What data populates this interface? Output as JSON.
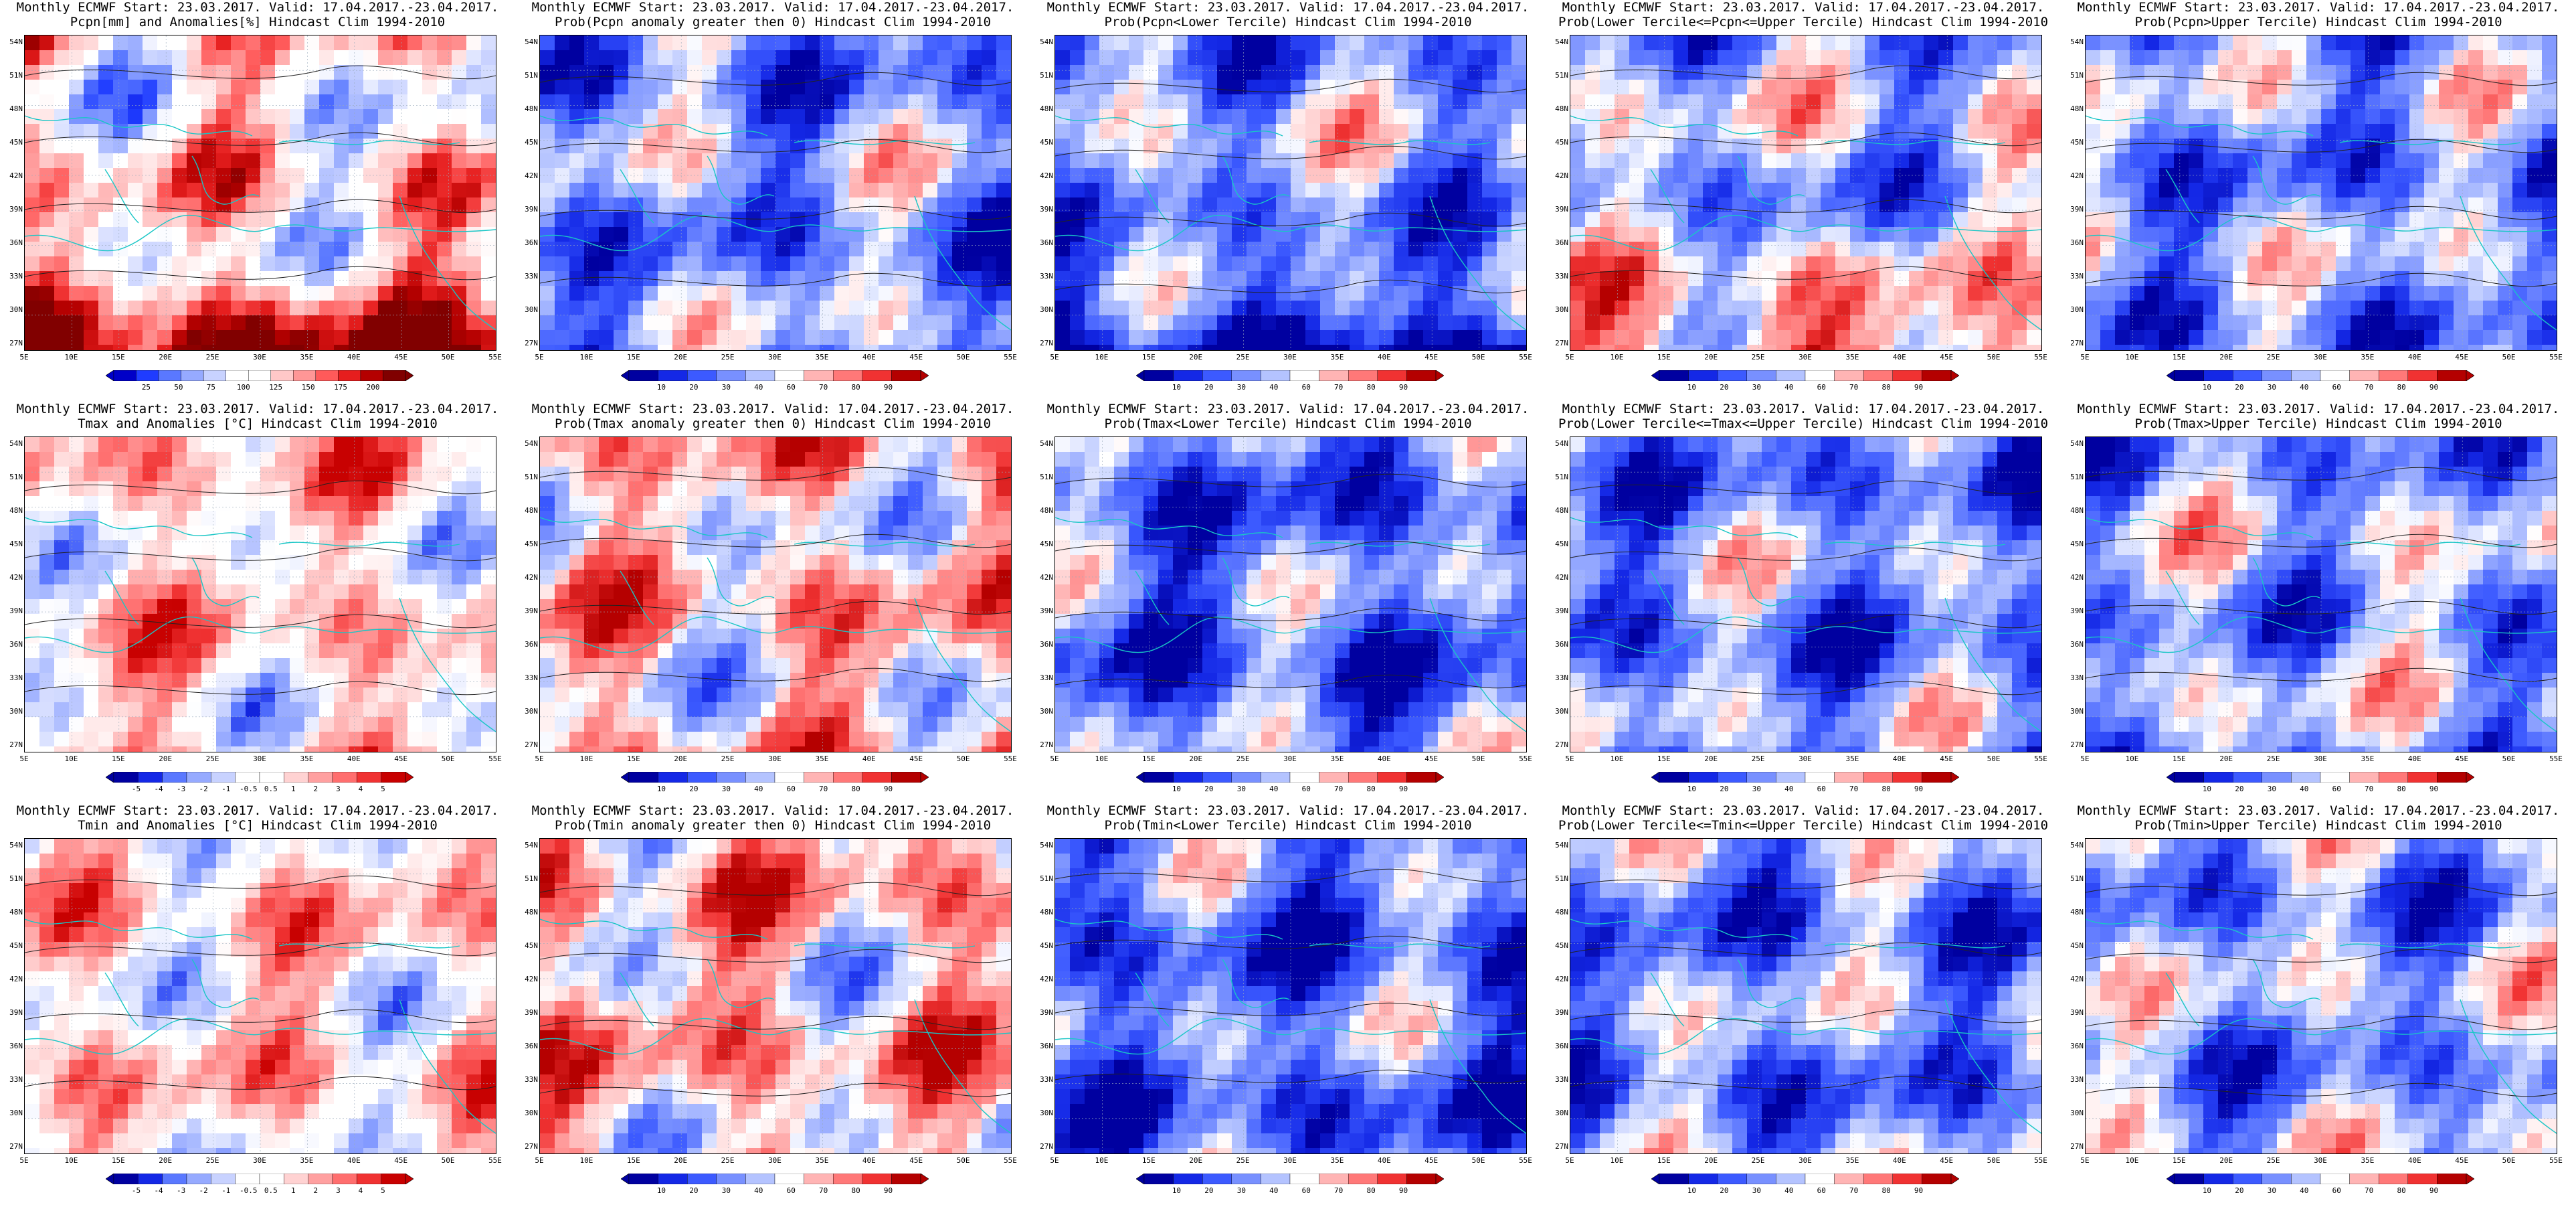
{
  "header_line": "Monthly ECMWF Start: 23.03.2017. Valid: 17.04.2017.-23.04.2017.",
  "lat_labels": [
    "54N",
    "51N",
    "48N",
    "45N",
    "42N",
    "39N",
    "36N",
    "33N",
    "30N",
    "27N"
  ],
  "lon_labels": [
    "5E",
    "10E",
    "15E",
    "20E",
    "25E",
    "30E",
    "35E",
    "40E",
    "45E",
    "50E",
    "55E"
  ],
  "colors": {
    "coastline": "#19c6c6",
    "contour": "#222222",
    "scale_anomaly_pcpn": [
      "#0000c8",
      "#1f3cff",
      "#5a78ff",
      "#96aaff",
      "#c8d2ff",
      "#ffffff",
      "#ffffff",
      "#ffc8c8",
      "#ff9696",
      "#ff5a5a",
      "#e61e1e",
      "#b40000",
      "#800000"
    ],
    "scale_prob": [
      "#0000a0",
      "#1428e6",
      "#3c5aff",
      "#7890ff",
      "#b4c3ff",
      "#ffffff",
      "#ffb4b4",
      "#ff7878",
      "#f03232",
      "#b40000"
    ],
    "scale_anomaly_temp": [
      "#0000a0",
      "#1428e6",
      "#5a78ff",
      "#96aaff",
      "#c8d2ff",
      "#ffffff",
      "#ffffff",
      "#ffd2d2",
      "#ffa0a0",
      "#ff6e6e",
      "#f03232",
      "#c80000"
    ]
  },
  "panels": [
    {
      "title": "Pcpn[mm] and Anomalies[%] Hindcast Clim 1994-2010",
      "bias": 0.05,
      "colorbar": [
        "25",
        "50",
        "75",
        "100",
        "125",
        "150",
        "175",
        "200"
      ],
      "scale": "scale_anomaly_pcpn"
    },
    {
      "title": "Prob(Pcpn anomaly greater then 0) Hindcast Clim 1994-2010",
      "bias": -0.35,
      "colorbar": [
        "10",
        "20",
        "30",
        "40",
        "60",
        "70",
        "80",
        "90"
      ],
      "scale": "scale_prob"
    },
    {
      "title": "Prob(Pcpn<Lower Tercile) Hindcast Clim 1994-2010",
      "bias": -0.3,
      "colorbar": [
        "10",
        "20",
        "30",
        "40",
        "60",
        "70",
        "80",
        "90"
      ],
      "scale": "scale_prob"
    },
    {
      "title": "Prob(Lower Tercile<=Pcpn<=Upper Tercile) Hindcast Clim 1994-2010",
      "bias": -0.2,
      "colorbar": [
        "10",
        "20",
        "30",
        "40",
        "60",
        "70",
        "80",
        "90"
      ],
      "scale": "scale_prob"
    },
    {
      "title": "Prob(Pcpn>Upper Tercile) Hindcast Clim 1994-2010",
      "bias": -0.35,
      "colorbar": [
        "10",
        "20",
        "30",
        "40",
        "60",
        "70",
        "80",
        "90"
      ],
      "scale": "scale_prob"
    },
    {
      "title": "Tmax and Anomalies [°C] Hindcast Clim 1994-2010",
      "bias": 0.25,
      "colorbar": [
        "-5",
        "-4",
        "-3",
        "-2",
        "-1",
        "-0.5",
        "0.5",
        "1",
        "2",
        "3",
        "4",
        "5"
      ],
      "scale": "scale_anomaly_temp"
    },
    {
      "title": "Prob(Tmax anomaly greater then 0) Hindcast Clim 1994-2010",
      "bias": 0.3,
      "colorbar": [
        "10",
        "20",
        "30",
        "40",
        "60",
        "70",
        "80",
        "90"
      ],
      "scale": "scale_prob"
    },
    {
      "title": "Prob(Tmax<Lower Tercile) Hindcast Clim 1994-2010",
      "bias": -0.55,
      "colorbar": [
        "10",
        "20",
        "30",
        "40",
        "60",
        "70",
        "80",
        "90"
      ],
      "scale": "scale_prob"
    },
    {
      "title": "Prob(Lower Tercile<=Tmax<=Upper Tercile) Hindcast Clim 1994-2010",
      "bias": -0.4,
      "colorbar": [
        "10",
        "20",
        "30",
        "40",
        "60",
        "70",
        "80",
        "90"
      ],
      "scale": "scale_prob"
    },
    {
      "title": "Prob(Tmax>Upper Tercile) Hindcast Clim 1994-2010",
      "bias": -0.25,
      "colorbar": [
        "10",
        "20",
        "30",
        "40",
        "60",
        "70",
        "80",
        "90"
      ],
      "scale": "scale_prob"
    },
    {
      "title": "Tmin and Anomalies [°C] Hindcast Clim 1994-2010",
      "bias": 0.2,
      "colorbar": [
        "-5",
        "-4",
        "-3",
        "-2",
        "-1",
        "-0.5",
        "0.5",
        "1",
        "2",
        "3",
        "4",
        "5"
      ],
      "scale": "scale_anomaly_temp"
    },
    {
      "title": "Prob(Tmin anomaly greater then 0) Hindcast Clim 1994-2010",
      "bias": 0.35,
      "colorbar": [
        "10",
        "20",
        "30",
        "40",
        "60",
        "70",
        "80",
        "90"
      ],
      "scale": "scale_prob"
    },
    {
      "title": "Prob(Tmin<Lower Tercile) Hindcast Clim 1994-2010",
      "bias": -0.55,
      "colorbar": [
        "10",
        "20",
        "30",
        "40",
        "60",
        "70",
        "80",
        "90"
      ],
      "scale": "scale_prob"
    },
    {
      "title": "Prob(Lower Tercile<=Tmin<=Upper Tercile) Hindcast Clim 1994-2010",
      "bias": -0.4,
      "colorbar": [
        "10",
        "20",
        "30",
        "40",
        "60",
        "70",
        "80",
        "90"
      ],
      "scale": "scale_prob"
    },
    {
      "title": "Prob(Tmin>Upper Tercile) Hindcast Clim 1994-2010",
      "bias": -0.3,
      "colorbar": [
        "10",
        "20",
        "30",
        "40",
        "60",
        "70",
        "80",
        "90"
      ],
      "scale": "scale_prob"
    }
  ]
}
